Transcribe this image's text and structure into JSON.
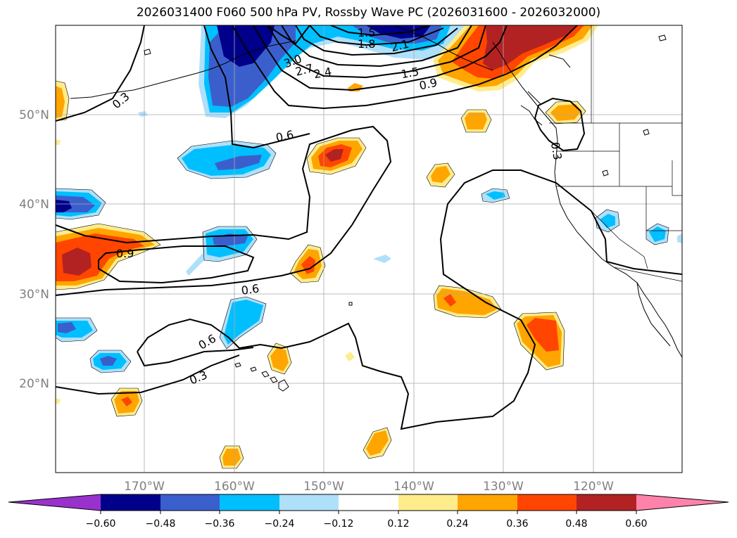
{
  "title": "2026031400 F060 500 hPa PV, Rossby Wave PC (2026031600 - 2026032000)",
  "map": {
    "lat_labels": [
      "50°N",
      "40°N",
      "30°N",
      "20°N"
    ],
    "lon_labels": [
      "170°W",
      "160°W",
      "150°W",
      "140°W",
      "130°W",
      "120°W"
    ],
    "contour_labels": [
      "0.3",
      "0.6",
      "0.9",
      "0.6",
      "0.6",
      "0.3",
      "0.9",
      "1.5",
      "1.8",
      "2.1",
      "2.4",
      "2.7",
      "3.0",
      "1.5",
      "0.3"
    ]
  },
  "colorbar": {
    "ticks": [
      "−0.60",
      "−0.48",
      "−0.36",
      "−0.24",
      "−0.12",
      "0.12",
      "0.24",
      "0.36",
      "0.48",
      "0.60"
    ],
    "colors": [
      "#9932cc",
      "#00008b",
      "#3a5fcd",
      "#00bfff",
      "#afe0fa",
      "#ffffff",
      "#ffec8b",
      "#ffa500",
      "#ff4500",
      "#b22222",
      "#ff82ab"
    ]
  }
}
